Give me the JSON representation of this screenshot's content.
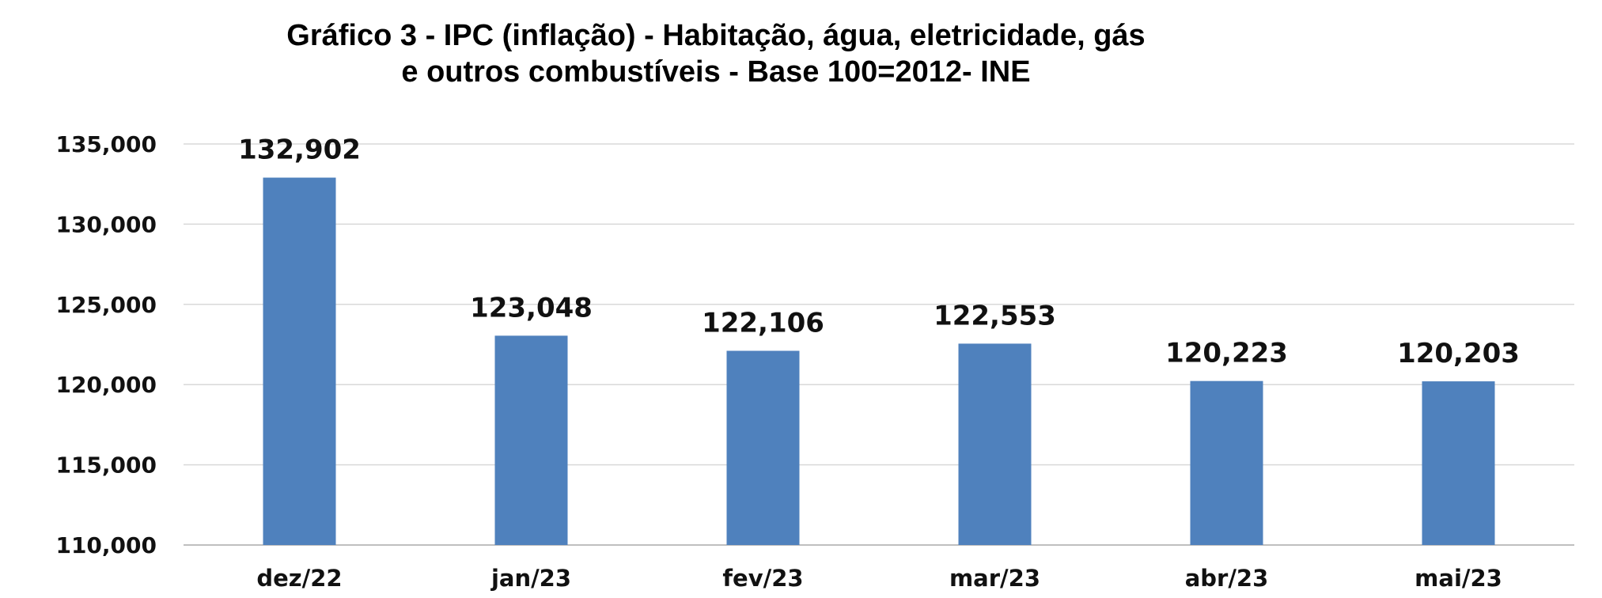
{
  "chart_data": {
    "type": "bar",
    "title_line1": "Gráfico 3 - IPC (inflação)  - Habitação, água, eletricidade,  gás",
    "title_line2": "e outros combustíveis  - Base 100=2012- INE",
    "categories": [
      "dez/22",
      "jan/23",
      "fev/23",
      "mar/23",
      "abr/23",
      "mai/23"
    ],
    "values": [
      132.902,
      123.048,
      122.106,
      122.553,
      120.223,
      120.203
    ],
    "data_labels": [
      "132,902",
      "123,048",
      "122,106",
      "122,553",
      "120,223",
      "120,203"
    ],
    "ylim": [
      110,
      135
    ],
    "yticks": [
      110,
      115,
      120,
      125,
      130,
      135
    ],
    "ytick_labels": [
      "110,000",
      "115,000",
      "120,000",
      "125,000",
      "130,000",
      "135,000"
    ],
    "xlabel": "",
    "ylabel": "",
    "grid": true,
    "legend": "none",
    "colors": {
      "bar": "#4f81bd",
      "grid": "#d9d9d9"
    }
  }
}
